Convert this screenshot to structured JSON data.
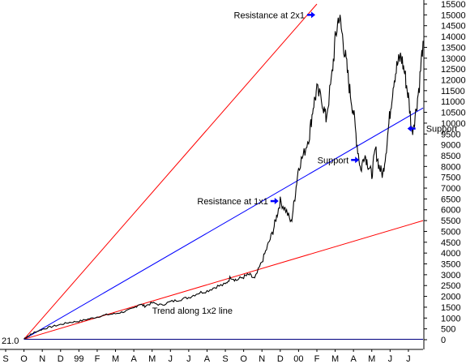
{
  "chart_data": {
    "type": "line",
    "title": "",
    "xlabel": "",
    "ylabel": "",
    "y_axis_position": "right",
    "ylim": [
      0,
      15500
    ],
    "y_ticks": [
      0,
      500,
      1000,
      1500,
      2000,
      2500,
      3000,
      3500,
      4000,
      4500,
      5000,
      5500,
      6000,
      6500,
      7000,
      7500,
      8000,
      8500,
      9000,
      9500,
      10000,
      10500,
      11000,
      11500,
      12000,
      12500,
      13000,
      13500,
      14000,
      14500,
      15000,
      15500
    ],
    "x_month_labels": [
      "S",
      "O",
      "N",
      "D",
      "99",
      "F",
      "M",
      "A",
      "M",
      "J",
      "J",
      "A",
      "S",
      "O",
      "N",
      "D",
      "00",
      "F",
      "M",
      "A",
      "M",
      "J",
      "J"
    ],
    "x_range_months": [
      0,
      22.8
    ],
    "grid": false,
    "legend": "none",
    "start_value_label": "21.0",
    "colors": {
      "price": "#000000",
      "gann_2x1": "#ff0000",
      "gann_1x1": "#0000ff",
      "gann_1x2": "#ff0000",
      "baseline": "#000080",
      "arrow": "#0000ff"
    },
    "gann_origin": {
      "month": 1.0,
      "value": 21
    },
    "gann_lines": [
      {
        "name": "2x1",
        "end": {
          "month": 17.0,
          "value": 15500
        }
      },
      {
        "name": "1x1",
        "end": {
          "month": 22.8,
          "value": 10700
        }
      },
      {
        "name": "1x2",
        "end": {
          "month": 22.8,
          "value": 5500
        }
      }
    ],
    "series": [
      {
        "points": [
          [
            1.0,
            50
          ],
          [
            1.3,
            200
          ],
          [
            1.6,
            350
          ],
          [
            2.0,
            480
          ],
          [
            2.5,
            600
          ],
          [
            3.0,
            700
          ],
          [
            3.5,
            800
          ],
          [
            4.0,
            850
          ],
          [
            4.5,
            950
          ],
          [
            5.0,
            1050
          ],
          [
            5.5,
            1150
          ],
          [
            6.0,
            1200
          ],
          [
            6.5,
            1300
          ],
          [
            7.0,
            1450
          ],
          [
            7.3,
            1650
          ],
          [
            7.6,
            1550
          ],
          [
            8.0,
            1700
          ],
          [
            8.5,
            1600
          ],
          [
            9.0,
            1750
          ],
          [
            9.5,
            1850
          ],
          [
            10.0,
            1950
          ],
          [
            10.5,
            2150
          ],
          [
            11.0,
            2250
          ],
          [
            11.5,
            2450
          ],
          [
            12.0,
            2550
          ],
          [
            12.3,
            2900
          ],
          [
            12.6,
            2750
          ],
          [
            13.0,
            2900
          ],
          [
            13.3,
            3000
          ],
          [
            13.6,
            2800
          ],
          [
            14.0,
            3600
          ],
          [
            14.3,
            4300
          ],
          [
            14.6,
            5000
          ],
          [
            14.8,
            5700
          ],
          [
            15.0,
            6400
          ],
          [
            15.3,
            6000
          ],
          [
            15.6,
            5400
          ],
          [
            15.8,
            6600
          ],
          [
            16.0,
            8000
          ],
          [
            16.3,
            8600
          ],
          [
            16.6,
            9500
          ],
          [
            16.8,
            10800
          ],
          [
            17.0,
            11500
          ],
          [
            17.3,
            11000
          ],
          [
            17.5,
            10200
          ],
          [
            17.8,
            12000
          ],
          [
            18.0,
            13800
          ],
          [
            18.2,
            15000
          ],
          [
            18.4,
            14000
          ],
          [
            18.6,
            12800
          ],
          [
            18.8,
            11500
          ],
          [
            19.0,
            10500
          ],
          [
            19.2,
            9000
          ],
          [
            19.4,
            7800
          ],
          [
            19.6,
            8600
          ],
          [
            19.8,
            8100
          ],
          [
            20.0,
            7600
          ],
          [
            20.2,
            8800
          ],
          [
            20.4,
            8000
          ],
          [
            20.6,
            7600
          ],
          [
            20.8,
            8900
          ],
          [
            21.0,
            10500
          ],
          [
            21.2,
            12000
          ],
          [
            21.4,
            12700
          ],
          [
            21.6,
            13100
          ],
          [
            21.8,
            12300
          ],
          [
            22.0,
            11200
          ],
          [
            22.2,
            9600
          ],
          [
            22.4,
            10500
          ],
          [
            22.6,
            11800
          ],
          [
            22.8,
            13800
          ]
        ]
      }
    ],
    "annotations": [
      {
        "text": "Resistance at 2x1",
        "arrow": "right",
        "month": 17.0,
        "value": 15000
      },
      {
        "text": "Resistance at 1x1",
        "arrow": "right",
        "month": 15.0,
        "value": 6400
      },
      {
        "text": "Support",
        "arrow": "right",
        "month": 19.4,
        "value": 8300
      },
      {
        "text": "Support",
        "arrow": "left",
        "month": 22.3,
        "value": 9750
      },
      {
        "text": "Trend along 1x2 line",
        "arrow": "none",
        "month": 8.0,
        "value": 1350
      }
    ]
  }
}
